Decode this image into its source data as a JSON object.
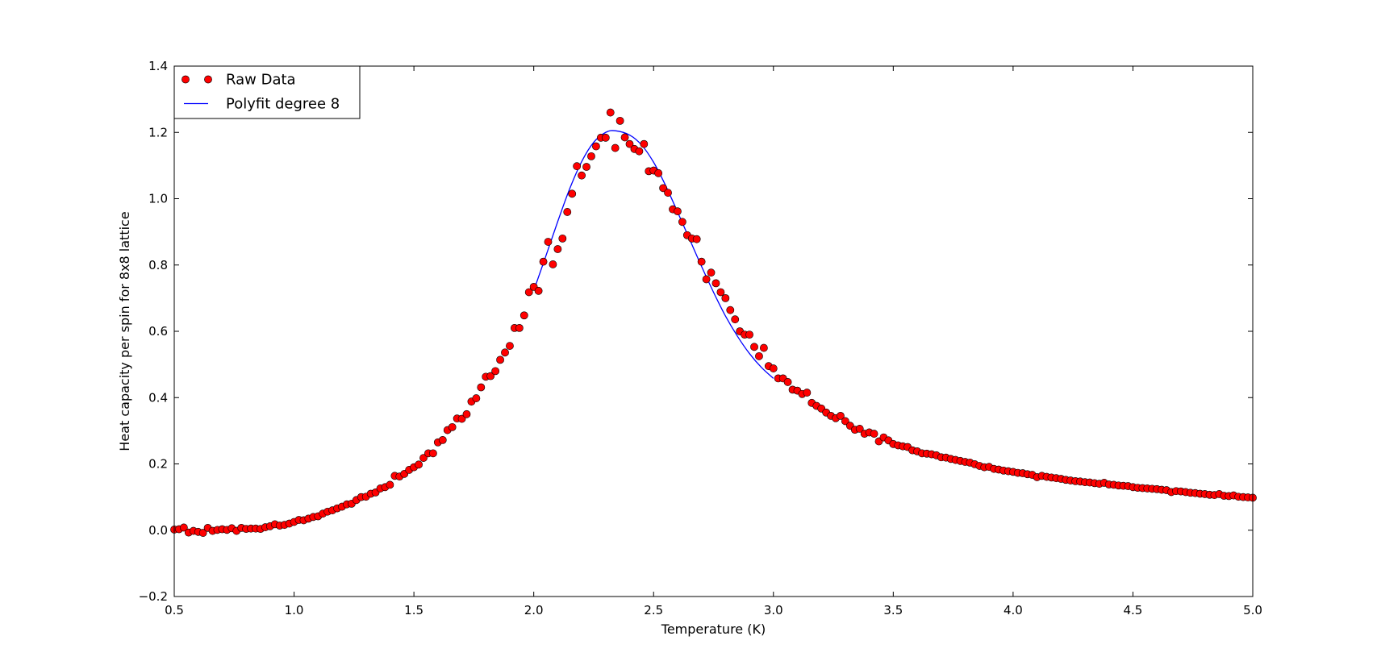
{
  "colors": {
    "points": "#ff0000",
    "points_edge": "#000000",
    "fit_line": "#0000ff",
    "axes": "#000000",
    "background": "#ffffff"
  },
  "chart_data": {
    "type": "scatter",
    "title": "",
    "xlabel": "Temperature (K)",
    "ylabel": "Heat capacity per spin for 8x8 lattice",
    "xlim": [
      0.5,
      5.0
    ],
    "ylim": [
      -0.2,
      1.4
    ],
    "xticks": [
      "0.5",
      "1.0",
      "1.5",
      "2.0",
      "2.5",
      "3.0",
      "3.5",
      "4.0",
      "4.5",
      "5.0"
    ],
    "yticks": [
      "−0.2",
      "0.0",
      "0.2",
      "0.4",
      "0.6",
      "0.8",
      "1.0",
      "1.2",
      "1.4"
    ],
    "grid": false,
    "legend_position": "top-left",
    "series": [
      {
        "name": "Raw Data",
        "kind": "scatter",
        "points": [
          [
            0.5,
            0.002
          ],
          [
            0.52,
            0.003
          ],
          [
            0.54,
            0.008
          ],
          [
            0.56,
            -0.007
          ],
          [
            0.58,
            -0.002
          ],
          [
            0.6,
            -0.005
          ],
          [
            0.62,
            -0.008
          ],
          [
            0.64,
            0.007
          ],
          [
            0.66,
            -0.002
          ],
          [
            0.68,
            0.001
          ],
          [
            0.7,
            0.003
          ],
          [
            0.72,
            0.001
          ],
          [
            0.74,
            0.006
          ],
          [
            0.76,
            -0.002
          ],
          [
            0.78,
            0.007
          ],
          [
            0.8,
            0.004
          ],
          [
            0.82,
            0.005
          ],
          [
            0.84,
            0.005
          ],
          [
            0.86,
            0.004
          ],
          [
            0.88,
            0.009
          ],
          [
            0.9,
            0.012
          ],
          [
            0.92,
            0.018
          ],
          [
            0.94,
            0.014
          ],
          [
            0.96,
            0.016
          ],
          [
            0.98,
            0.02
          ],
          [
            1.0,
            0.025
          ],
          [
            1.02,
            0.031
          ],
          [
            1.04,
            0.03
          ],
          [
            1.06,
            0.035
          ],
          [
            1.08,
            0.04
          ],
          [
            1.1,
            0.042
          ],
          [
            1.12,
            0.05
          ],
          [
            1.14,
            0.056
          ],
          [
            1.16,
            0.06
          ],
          [
            1.18,
            0.066
          ],
          [
            1.2,
            0.071
          ],
          [
            1.22,
            0.078
          ],
          [
            1.24,
            0.08
          ],
          [
            1.26,
            0.091
          ],
          [
            1.28,
            0.1
          ],
          [
            1.3,
            0.101
          ],
          [
            1.32,
            0.11
          ],
          [
            1.34,
            0.114
          ],
          [
            1.36,
            0.126
          ],
          [
            1.38,
            0.13
          ],
          [
            1.4,
            0.137
          ],
          [
            1.42,
            0.164
          ],
          [
            1.44,
            0.162
          ],
          [
            1.46,
            0.17
          ],
          [
            1.48,
            0.182
          ],
          [
            1.5,
            0.19
          ],
          [
            1.52,
            0.198
          ],
          [
            1.54,
            0.218
          ],
          [
            1.56,
            0.232
          ],
          [
            1.58,
            0.232
          ],
          [
            1.6,
            0.265
          ],
          [
            1.62,
            0.272
          ],
          [
            1.64,
            0.302
          ],
          [
            1.66,
            0.311
          ],
          [
            1.68,
            0.337
          ],
          [
            1.7,
            0.336
          ],
          [
            1.72,
            0.35
          ],
          [
            1.74,
            0.388
          ],
          [
            1.76,
            0.398
          ],
          [
            1.78,
            0.431
          ],
          [
            1.8,
            0.463
          ],
          [
            1.82,
            0.465
          ],
          [
            1.84,
            0.48
          ],
          [
            1.86,
            0.514
          ],
          [
            1.88,
            0.536
          ],
          [
            1.9,
            0.556
          ],
          [
            1.92,
            0.61
          ],
          [
            1.94,
            0.61
          ],
          [
            1.96,
            0.648
          ],
          [
            1.98,
            0.718
          ],
          [
            2.0,
            0.734
          ],
          [
            2.02,
            0.722
          ],
          [
            2.04,
            0.81
          ],
          [
            2.06,
            0.87
          ],
          [
            2.08,
            0.802
          ],
          [
            2.1,
            0.848
          ],
          [
            2.12,
            0.88
          ],
          [
            2.14,
            0.96
          ],
          [
            2.16,
            1.015
          ],
          [
            2.18,
            1.098
          ],
          [
            2.2,
            1.07
          ],
          [
            2.22,
            1.096
          ],
          [
            2.24,
            1.128
          ],
          [
            2.26,
            1.158
          ],
          [
            2.28,
            1.184
          ],
          [
            2.3,
            1.184
          ],
          [
            2.32,
            1.26
          ],
          [
            2.34,
            1.153
          ],
          [
            2.36,
            1.235
          ],
          [
            2.38,
            1.185
          ],
          [
            2.4,
            1.165
          ],
          [
            2.42,
            1.15
          ],
          [
            2.44,
            1.143
          ],
          [
            2.46,
            1.165
          ],
          [
            2.48,
            1.083
          ],
          [
            2.5,
            1.085
          ],
          [
            2.52,
            1.077
          ],
          [
            2.54,
            1.032
          ],
          [
            2.56,
            1.018
          ],
          [
            2.58,
            0.968
          ],
          [
            2.6,
            0.962
          ],
          [
            2.62,
            0.93
          ],
          [
            2.64,
            0.89
          ],
          [
            2.66,
            0.88
          ],
          [
            2.68,
            0.878
          ],
          [
            2.7,
            0.81
          ],
          [
            2.72,
            0.757
          ],
          [
            2.74,
            0.777
          ],
          [
            2.76,
            0.745
          ],
          [
            2.78,
            0.718
          ],
          [
            2.8,
            0.7
          ],
          [
            2.82,
            0.664
          ],
          [
            2.84,
            0.636
          ],
          [
            2.86,
            0.6
          ],
          [
            2.88,
            0.59
          ],
          [
            2.9,
            0.59
          ],
          [
            2.92,
            0.553
          ],
          [
            2.94,
            0.525
          ],
          [
            2.96,
            0.55
          ],
          [
            2.98,
            0.495
          ],
          [
            3.0,
            0.488
          ],
          [
            3.02,
            0.458
          ],
          [
            3.04,
            0.458
          ],
          [
            3.06,
            0.447
          ],
          [
            3.08,
            0.424
          ],
          [
            3.1,
            0.421
          ],
          [
            3.12,
            0.411
          ],
          [
            3.14,
            0.415
          ],
          [
            3.16,
            0.384
          ],
          [
            3.18,
            0.375
          ],
          [
            3.2,
            0.367
          ],
          [
            3.22,
            0.355
          ],
          [
            3.24,
            0.345
          ],
          [
            3.26,
            0.338
          ],
          [
            3.28,
            0.345
          ],
          [
            3.3,
            0.329
          ],
          [
            3.32,
            0.315
          ],
          [
            3.34,
            0.303
          ],
          [
            3.36,
            0.306
          ],
          [
            3.38,
            0.291
          ],
          [
            3.4,
            0.295
          ],
          [
            3.42,
            0.291
          ],
          [
            3.44,
            0.268
          ],
          [
            3.46,
            0.28
          ],
          [
            3.48,
            0.271
          ],
          [
            3.5,
            0.26
          ],
          [
            3.52,
            0.256
          ],
          [
            3.54,
            0.253
          ],
          [
            3.56,
            0.251
          ],
          [
            3.58,
            0.241
          ],
          [
            3.6,
            0.238
          ],
          [
            3.62,
            0.232
          ],
          [
            3.64,
            0.231
          ],
          [
            3.66,
            0.229
          ],
          [
            3.68,
            0.226
          ],
          [
            3.7,
            0.22
          ],
          [
            3.72,
            0.219
          ],
          [
            3.74,
            0.215
          ],
          [
            3.76,
            0.212
          ],
          [
            3.78,
            0.209
          ],
          [
            3.8,
            0.206
          ],
          [
            3.82,
            0.204
          ],
          [
            3.84,
            0.199
          ],
          [
            3.86,
            0.194
          ],
          [
            3.88,
            0.19
          ],
          [
            3.9,
            0.191
          ],
          [
            3.92,
            0.185
          ],
          [
            3.94,
            0.183
          ],
          [
            3.96,
            0.18
          ],
          [
            3.98,
            0.178
          ],
          [
            4.0,
            0.176
          ],
          [
            4.02,
            0.173
          ],
          [
            4.04,
            0.172
          ],
          [
            4.06,
            0.169
          ],
          [
            4.08,
            0.167
          ],
          [
            4.1,
            0.16
          ],
          [
            4.12,
            0.164
          ],
          [
            4.14,
            0.161
          ],
          [
            4.16,
            0.159
          ],
          [
            4.18,
            0.157
          ],
          [
            4.2,
            0.155
          ],
          [
            4.22,
            0.152
          ],
          [
            4.24,
            0.15
          ],
          [
            4.26,
            0.148
          ],
          [
            4.28,
            0.147
          ],
          [
            4.3,
            0.145
          ],
          [
            4.32,
            0.144
          ],
          [
            4.34,
            0.142
          ],
          [
            4.36,
            0.14
          ],
          [
            4.38,
            0.143
          ],
          [
            4.4,
            0.138
          ],
          [
            4.42,
            0.137
          ],
          [
            4.44,
            0.135
          ],
          [
            4.46,
            0.134
          ],
          [
            4.48,
            0.133
          ],
          [
            4.5,
            0.13
          ],
          [
            4.52,
            0.128
          ],
          [
            4.54,
            0.127
          ],
          [
            4.56,
            0.126
          ],
          [
            4.58,
            0.125
          ],
          [
            4.6,
            0.124
          ],
          [
            4.62,
            0.122
          ],
          [
            4.64,
            0.121
          ],
          [
            4.66,
            0.115
          ],
          [
            4.68,
            0.118
          ],
          [
            4.7,
            0.117
          ],
          [
            4.72,
            0.115
          ],
          [
            4.74,
            0.113
          ],
          [
            4.76,
            0.112
          ],
          [
            4.78,
            0.11
          ],
          [
            4.8,
            0.109
          ],
          [
            4.82,
            0.107
          ],
          [
            4.84,
            0.106
          ],
          [
            4.86,
            0.109
          ],
          [
            4.88,
            0.104
          ],
          [
            4.9,
            0.103
          ],
          [
            4.92,
            0.105
          ],
          [
            4.94,
            0.101
          ],
          [
            4.96,
            0.1
          ],
          [
            4.98,
            0.099
          ],
          [
            5.0,
            0.098
          ]
        ]
      },
      {
        "name": "Polyfit degree 8",
        "kind": "line",
        "points": [
          [
            2.0,
            0.723
          ],
          [
            2.05,
            0.826
          ],
          [
            2.1,
            0.931
          ],
          [
            2.15,
            1.03
          ],
          [
            2.2,
            1.112
          ],
          [
            2.25,
            1.17
          ],
          [
            2.3,
            1.2
          ],
          [
            2.34,
            1.205
          ],
          [
            2.4,
            1.192
          ],
          [
            2.45,
            1.162
          ],
          [
            2.5,
            1.11
          ],
          [
            2.55,
            1.04
          ],
          [
            2.6,
            0.96
          ],
          [
            2.65,
            0.878
          ],
          [
            2.7,
            0.796
          ],
          [
            2.75,
            0.718
          ],
          [
            2.8,
            0.646
          ],
          [
            2.85,
            0.585
          ],
          [
            2.9,
            0.533
          ],
          [
            2.95,
            0.491
          ],
          [
            3.0,
            0.458
          ]
        ]
      }
    ]
  }
}
